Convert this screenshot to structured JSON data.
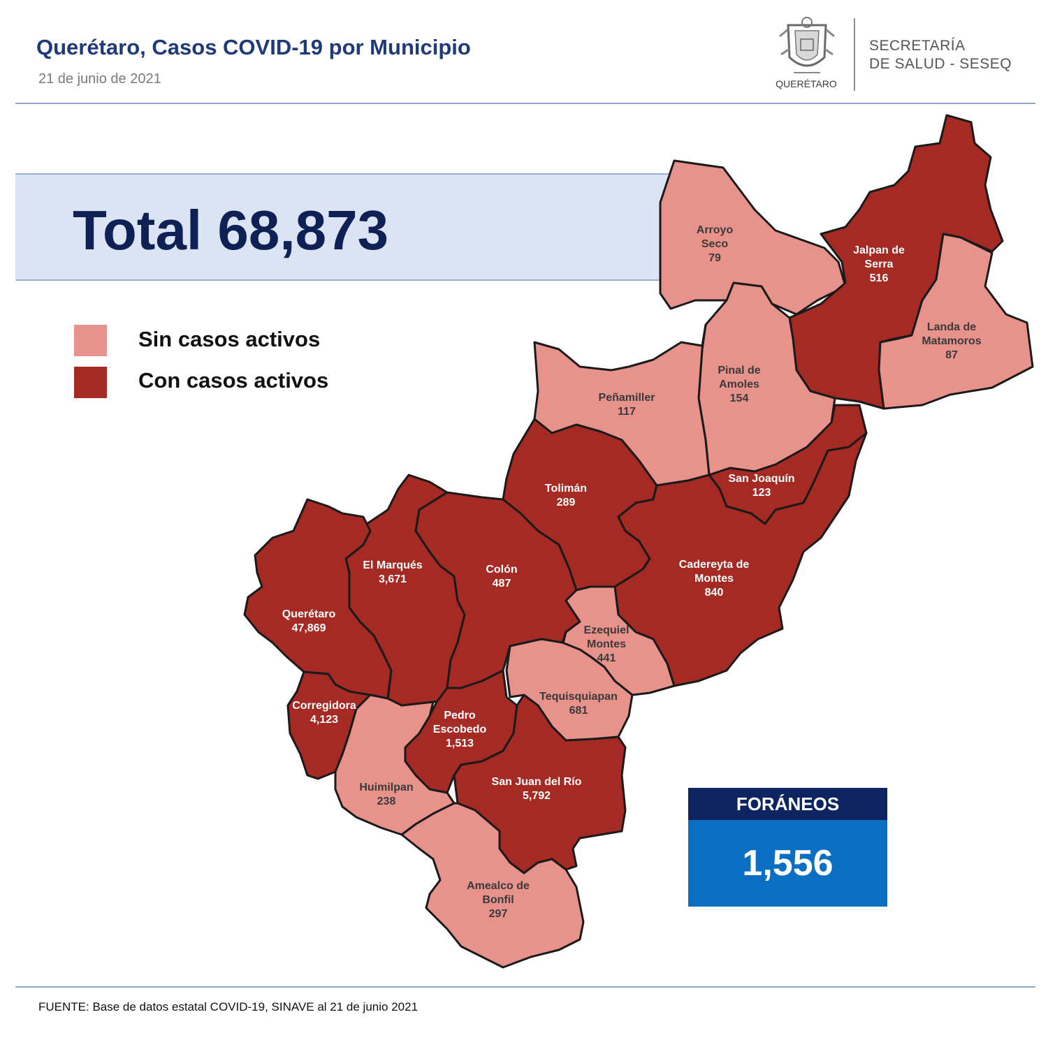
{
  "header": {
    "title": "Querétaro, Casos COVID-19 por Municipio",
    "date": "21 de junio  de 2021",
    "logo_caption": "QUERÉTARO",
    "agency_line1": "SECRETARÍA",
    "agency_line2": "DE SALUD - SESEQ"
  },
  "total": {
    "text": "Total 68,873"
  },
  "legend": [
    {
      "label": "Sin casos activos",
      "color": "#e8928c"
    },
    {
      "label": "Con casos activos",
      "color": "#a52a24"
    }
  ],
  "colors": {
    "sin": "#e8928c",
    "con": "#a52a24",
    "border": "#1a1a1a",
    "label_on_light": "#3a3a3a",
    "label_on_dark": "#ffffff"
  },
  "municipios": [
    {
      "name": "Arroyo Seco",
      "lines": [
        "Arroyo",
        "Seco",
        "79"
      ],
      "cases": 79,
      "status": "sin"
    },
    {
      "name": "Jalpan de Serra",
      "lines": [
        "Jalpan de",
        "Serra",
        "516"
      ],
      "cases": 516,
      "status": "con"
    },
    {
      "name": "Landa de Matamoros",
      "lines": [
        "Landa de",
        "Matamoros",
        "87"
      ],
      "cases": 87,
      "status": "sin"
    },
    {
      "name": "Pinal de Amoles",
      "lines": [
        "Pinal de",
        "Amoles",
        "154"
      ],
      "cases": 154,
      "status": "sin"
    },
    {
      "name": "Peñamiller",
      "lines": [
        "Peñamiller",
        "117"
      ],
      "cases": 117,
      "status": "sin"
    },
    {
      "name": "San Joaquín",
      "lines": [
        "San Joaquín",
        "123"
      ],
      "cases": 123,
      "status": "con"
    },
    {
      "name": "Tolimán",
      "lines": [
        "Tolimán",
        "289"
      ],
      "cases": 289,
      "status": "con"
    },
    {
      "name": "Cadereyta de Montes",
      "lines": [
        "Cadereyta de",
        "Montes",
        "840"
      ],
      "cases": 840,
      "status": "con"
    },
    {
      "name": "El Marqués",
      "lines": [
        "El  Marqués",
        "3,671"
      ],
      "cases": 3671,
      "status": "con"
    },
    {
      "name": "Colón",
      "lines": [
        "Colón",
        "487"
      ],
      "cases": 487,
      "status": "con"
    },
    {
      "name": "Querétaro",
      "lines": [
        "Querétaro",
        "47,869"
      ],
      "cases": 47869,
      "status": "con"
    },
    {
      "name": "Ezequiel Montes",
      "lines": [
        "Ezequiel",
        "Montes",
        "441"
      ],
      "cases": 441,
      "status": "sin"
    },
    {
      "name": "Tequisquiapan",
      "lines": [
        "Tequisquiapan",
        "681"
      ],
      "cases": 681,
      "status": "sin"
    },
    {
      "name": "Corregidora",
      "lines": [
        "Corregidora",
        "4,123"
      ],
      "cases": 4123,
      "status": "con"
    },
    {
      "name": "Pedro Escobedo",
      "lines": [
        "Pedro",
        "Escobedo",
        "1,513"
      ],
      "cases": 1513,
      "status": "con"
    },
    {
      "name": "Huimilpan",
      "lines": [
        "Huimilpan",
        "238"
      ],
      "cases": 238,
      "status": "sin"
    },
    {
      "name": "San Juan del Río",
      "lines": [
        "San Juan del Río",
        "5,792"
      ],
      "cases": 5792,
      "status": "con"
    },
    {
      "name": "Amealco de Bonfil",
      "lines": [
        "Amealco de",
        "Bonfil",
        "297"
      ],
      "cases": 297,
      "status": "sin"
    }
  ],
  "foraneos": {
    "label": "FORÁNEOS",
    "value": "1,556"
  },
  "footer": {
    "source": "FUENTE:  Base de datos estatal COVID-19,  SINAVE  al 21 de junio  2021"
  }
}
